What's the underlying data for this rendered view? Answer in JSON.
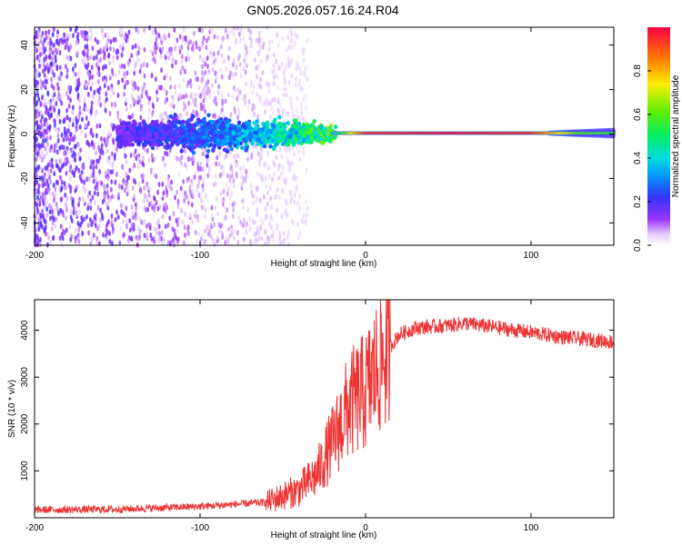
{
  "title": "GN05.2026.057.16.24.R04",
  "chart_data": [
    {
      "type": "heatmap",
      "xlabel": "Height of straight line (km)",
      "ylabel": "Frequency (Hz)",
      "xlim": [
        -200,
        150
      ],
      "ylim": [
        -50,
        48
      ],
      "xticks": [
        -200,
        -100,
        0,
        100
      ],
      "yticks": [
        -40,
        -20,
        0,
        20,
        40
      ],
      "colorbar": {
        "label": "Normalized spectral amplitude",
        "range": [
          0,
          1
        ],
        "ticks": [
          "0.0",
          "0.2",
          "0.4",
          "0.6",
          "0.8"
        ]
      },
      "description_points": [
        {
          "x": -150,
          "spread_hz": 6,
          "amp": 0.2
        },
        {
          "x": -100,
          "spread_hz": 8,
          "amp": 0.3
        },
        {
          "x": -50,
          "spread_hz": 6,
          "amp": 0.5
        },
        {
          "x": -20,
          "spread_hz": 4,
          "amp": 0.7
        },
        {
          "x": 0,
          "spread_hz": 1,
          "amp": 0.95
        },
        {
          "x": 50,
          "spread_hz": 1,
          "amp": 1.0
        },
        {
          "x": 100,
          "spread_hz": 1,
          "amp": 0.95
        },
        {
          "x": 150,
          "spread_hz": 2,
          "amp": 0.6
        }
      ]
    },
    {
      "type": "line",
      "xlabel": "Height of straight line (km)",
      "ylabel": "SNR (10 * v/v)",
      "xlim": [
        -200,
        150
      ],
      "ylim": [
        0,
        4650
      ],
      "xticks": [
        -200,
        -100,
        0,
        100
      ],
      "yticks": [
        1000,
        2000,
        3000,
        4000
      ],
      "color": "#ee3333",
      "series": [
        {
          "name": "SNR",
          "x": [
            -200,
            -150,
            -100,
            -60,
            -40,
            -30,
            -20,
            -10,
            0,
            10,
            20,
            30,
            50,
            60,
            80,
            100,
            120,
            150
          ],
          "y": [
            170,
            180,
            240,
            330,
            600,
            900,
            1600,
            2400,
            2700,
            3400,
            3900,
            4050,
            4100,
            4150,
            4050,
            3950,
            3850,
            3750
          ]
        }
      ]
    }
  ]
}
